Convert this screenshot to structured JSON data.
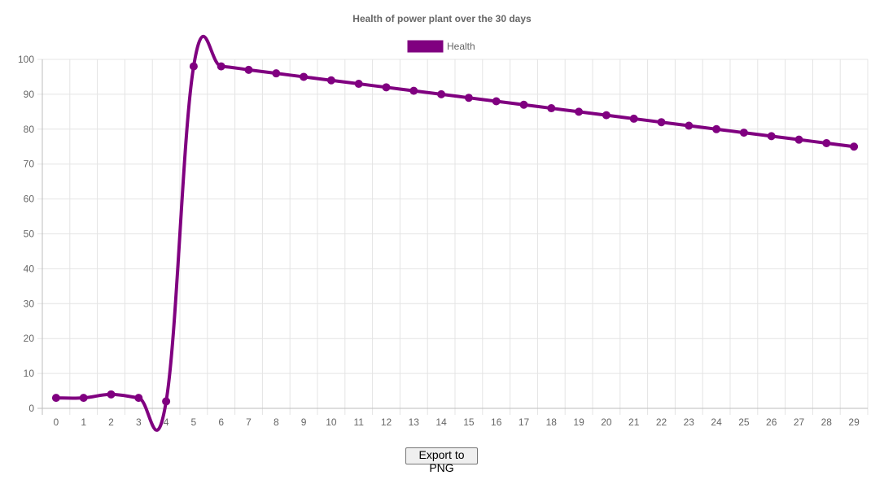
{
  "chart_data": {
    "type": "line",
    "title": "Health of power plant over the 30 days",
    "xlabel": "",
    "ylabel": "",
    "x": [
      0,
      1,
      2,
      3,
      4,
      5,
      6,
      7,
      8,
      9,
      10,
      11,
      12,
      13,
      14,
      15,
      16,
      17,
      18,
      19,
      20,
      21,
      22,
      23,
      24,
      25,
      26,
      27,
      28,
      29
    ],
    "series": [
      {
        "name": "Health",
        "color": "#800080",
        "values": [
          3,
          3,
          4,
          3,
          2,
          98,
          98,
          97,
          96,
          95,
          94,
          93,
          92,
          91,
          90,
          89,
          88,
          87,
          86,
          85,
          84,
          83,
          82,
          81,
          80,
          79,
          78,
          77,
          76,
          75
        ]
      }
    ],
    "ylim": [
      0,
      100
    ],
    "yticks": [
      0,
      10,
      20,
      30,
      40,
      50,
      60,
      70,
      80,
      90,
      100
    ],
    "grid": true,
    "legend_position": "top"
  },
  "toolbar": {
    "export_label": "Export to PNG"
  }
}
